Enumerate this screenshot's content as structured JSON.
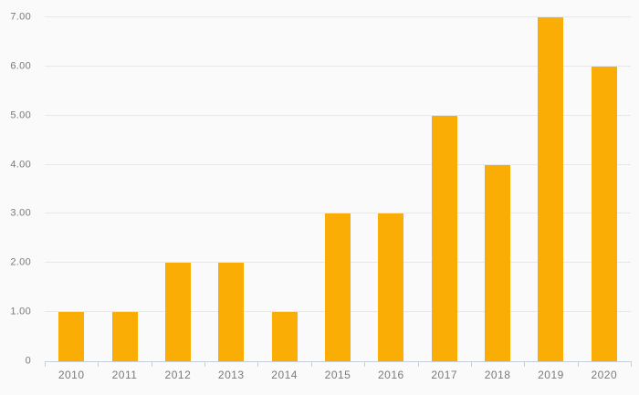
{
  "chart_data": {
    "type": "bar",
    "title": "",
    "xlabel": "",
    "ylabel": "",
    "categories": [
      "2010",
      "2011",
      "2012",
      "2013",
      "2014",
      "2015",
      "2016",
      "2017",
      "2018",
      "2019",
      "2020"
    ],
    "values": [
      1,
      1,
      2,
      2,
      1,
      3,
      3,
      5,
      4,
      7,
      6
    ],
    "ylim": [
      0,
      7
    ],
    "yticks": [
      {
        "value": 0,
        "label": "0"
      },
      {
        "value": 1,
        "label": "1.00"
      },
      {
        "value": 2,
        "label": "2.00"
      },
      {
        "value": 3,
        "label": "3.00"
      },
      {
        "value": 4,
        "label": "4.00"
      },
      {
        "value": 5,
        "label": "5.00"
      },
      {
        "value": 6,
        "label": "6.00"
      },
      {
        "value": 7,
        "label": "7.00"
      }
    ],
    "grid": true,
    "legend": false,
    "colors": {
      "bar": "#FAAE05",
      "grid": "#E8E8E8",
      "axis": "#C6CFDB",
      "label": "#7A7A7A",
      "background": "#FAFAFA"
    }
  }
}
